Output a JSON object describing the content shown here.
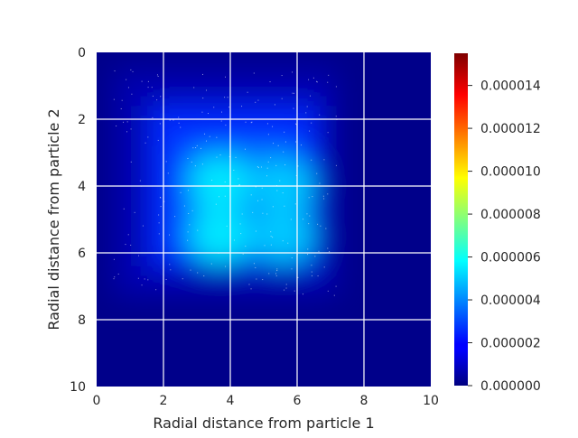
{
  "chart_data": {
    "type": "heatmap",
    "title": "",
    "xlabel": "Radial distance from particle 1",
    "ylabel": "Radial distance from particle 2",
    "xlim": [
      0,
      10
    ],
    "ylim": [
      10,
      0
    ],
    "x_ticks": [
      "0",
      "2",
      "4",
      "6",
      "8",
      "10"
    ],
    "y_ticks": [
      "0",
      "2",
      "4",
      "6",
      "8",
      "10"
    ],
    "grid": true,
    "colormap": "jet",
    "colorbar": {
      "min": 0,
      "max": 1.55e-05,
      "ticks": [
        {
          "value": 0.0,
          "label": "0.000000"
        },
        {
          "value": 2e-06,
          "label": "0.000002"
        },
        {
          "value": 4e-06,
          "label": "0.000004"
        },
        {
          "value": 6e-06,
          "label": "0.000006"
        },
        {
          "value": 8e-06,
          "label": "0.000008"
        },
        {
          "value": 1e-05,
          "label": "0.000010"
        },
        {
          "value": 1.2e-05,
          "label": "0.000012"
        },
        {
          "value": 1.4e-05,
          "label": "0.000014"
        }
      ]
    },
    "density_peaks": [
      {
        "x": 3.7,
        "y": 3.9,
        "value": 5.5e-06
      },
      {
        "x": 5.6,
        "y": 4.0,
        "value": 5e-06
      },
      {
        "x": 3.7,
        "y": 5.5,
        "value": 5.5e-06
      },
      {
        "x": 5.6,
        "y": 5.5,
        "value": 5e-06
      }
    ],
    "support_range": {
      "x": [
        0.5,
        7.2
      ],
      "y": [
        0.5,
        7.3
      ]
    }
  }
}
